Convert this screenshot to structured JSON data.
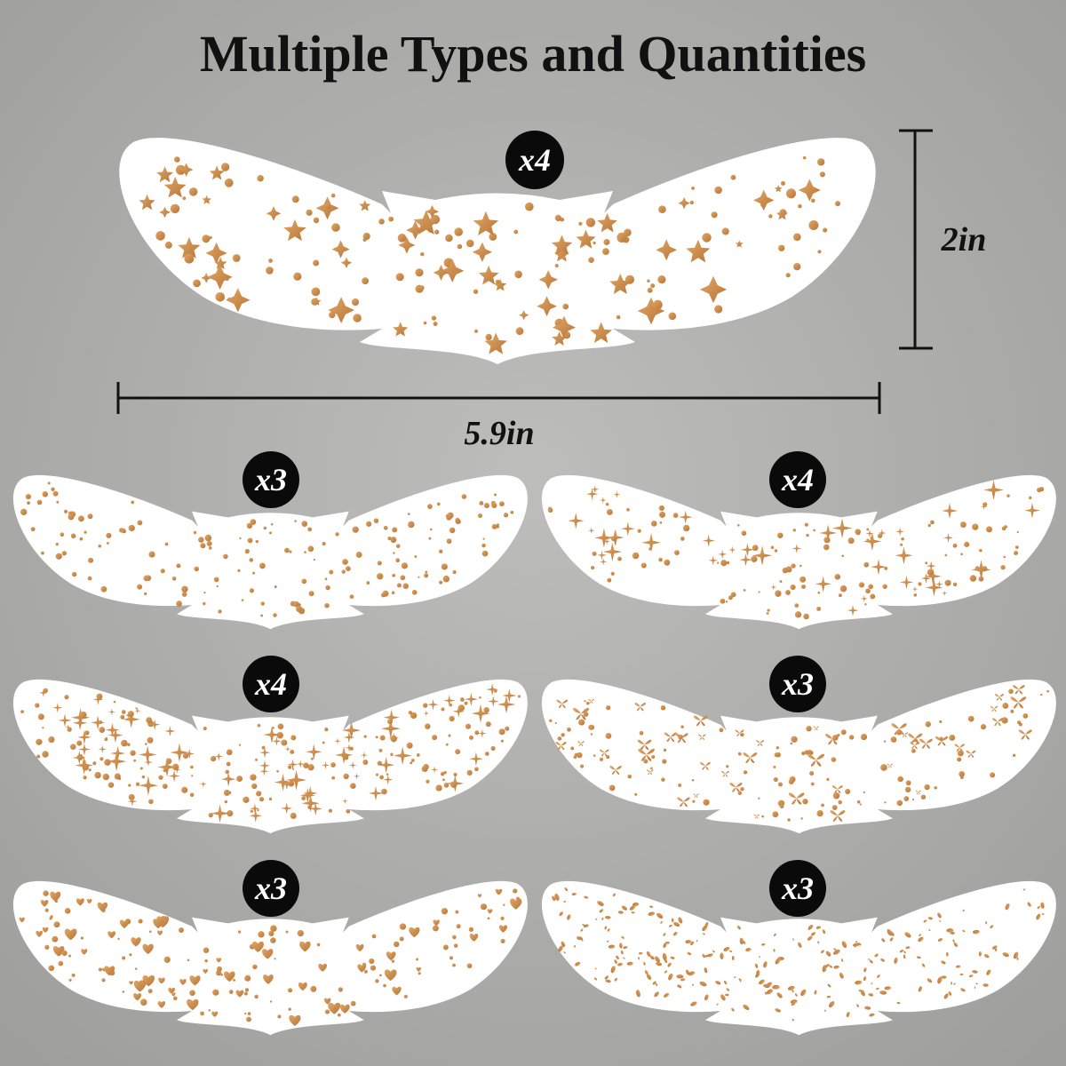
{
  "title": "Multiple Types and Quantities",
  "dimensions": {
    "height": "2in",
    "width": "5.9in"
  },
  "patches": [
    {
      "quantity": "x4"
    },
    {
      "quantity": "x3"
    },
    {
      "quantity": "x4"
    },
    {
      "quantity": "x4"
    },
    {
      "quantity": "x3"
    },
    {
      "quantity": "x3"
    },
    {
      "quantity": "x3"
    }
  ]
}
